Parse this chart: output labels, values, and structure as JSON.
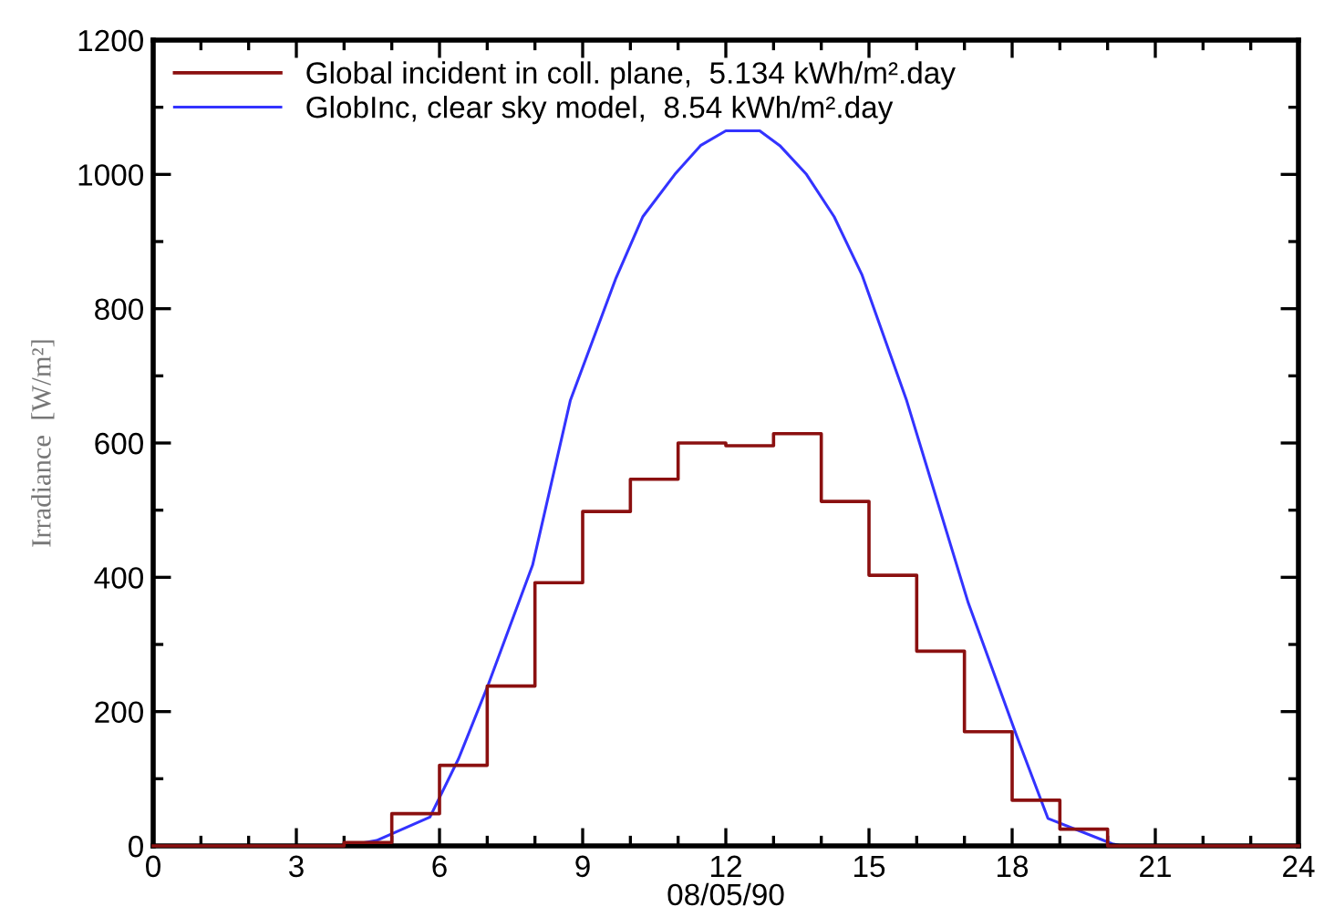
{
  "chart_data": {
    "type": "line",
    "xlabel": "08/05/90",
    "ylabel": "Irradiance  [W/m²]",
    "series": [
      {
        "name": "Global incident in coll. plane,  5.134 kWh/m².day",
        "type": "step",
        "color": "#8b1010",
        "x": [
          0,
          1,
          2,
          3,
          4,
          5,
          6,
          7,
          8,
          9,
          10,
          11,
          12,
          13,
          14,
          15,
          16,
          17,
          18,
          19,
          20,
          21,
          22,
          23,
          24
        ],
        "values": [
          0,
          0,
          0,
          0,
          5,
          48,
          120,
          238,
          392,
          498,
          546,
          600,
          596,
          614,
          513,
          403,
          290,
          170,
          68,
          25,
          0,
          0,
          0,
          0,
          0
        ]
      },
      {
        "name": "GlobInc, clear sky model,  8.54 kWh/m².day",
        "color": "#3333ff",
        "x": [
          4.05,
          4.68,
          5.8,
          6.4,
          7.02,
          7.95,
          8.74,
          9.7,
          10.26,
          10.93,
          11.47,
          12,
          12.71,
          13.13,
          13.69,
          14.27,
          14.85,
          15.79,
          17.08,
          18.1,
          18.75,
          20.1,
          20.3
        ],
        "values": [
          0,
          8,
          43,
          130,
          240,
          418,
          663,
          846,
          937,
          1000,
          1043,
          1065,
          1065,
          1043,
          1000,
          937,
          851,
          663,
          362,
          163,
          41,
          3,
          0
        ]
      }
    ],
    "xlim": [
      0,
      24
    ],
    "ylim": [
      0,
      1200
    ],
    "xticks": [
      0,
      {
        "value": 1,
        "label": null
      },
      {
        "value": 2,
        "label": null
      },
      3,
      {
        "value": 4,
        "label": null
      },
      {
        "value": 5,
        "label": null
      },
      6,
      {
        "value": 7,
        "label": null
      },
      {
        "value": 8,
        "label": null
      },
      9,
      {
        "value": 10,
        "label": null
      },
      {
        "value": 11,
        "label": null
      },
      12,
      {
        "value": 13,
        "label": null
      },
      {
        "value": 14,
        "label": null
      },
      15,
      {
        "value": 16,
        "label": null
      },
      {
        "value": 17,
        "label": null
      },
      18,
      {
        "value": 19,
        "label": null
      },
      {
        "value": 20,
        "label": null
      },
      21,
      {
        "value": 22,
        "label": null
      },
      {
        "value": 23,
        "label": null
      },
      24
    ],
    "yticks": [
      0,
      {
        "value": 100,
        "label": null
      },
      200,
      {
        "value": 300,
        "label": null
      },
      400,
      {
        "value": 500,
        "label": null
      },
      600,
      {
        "value": 700,
        "label": null
      },
      800,
      {
        "value": 900,
        "label": null
      },
      1000,
      {
        "value": 1100,
        "label": null
      },
      1200
    ],
    "legend": "top left",
    "grid": false
  }
}
